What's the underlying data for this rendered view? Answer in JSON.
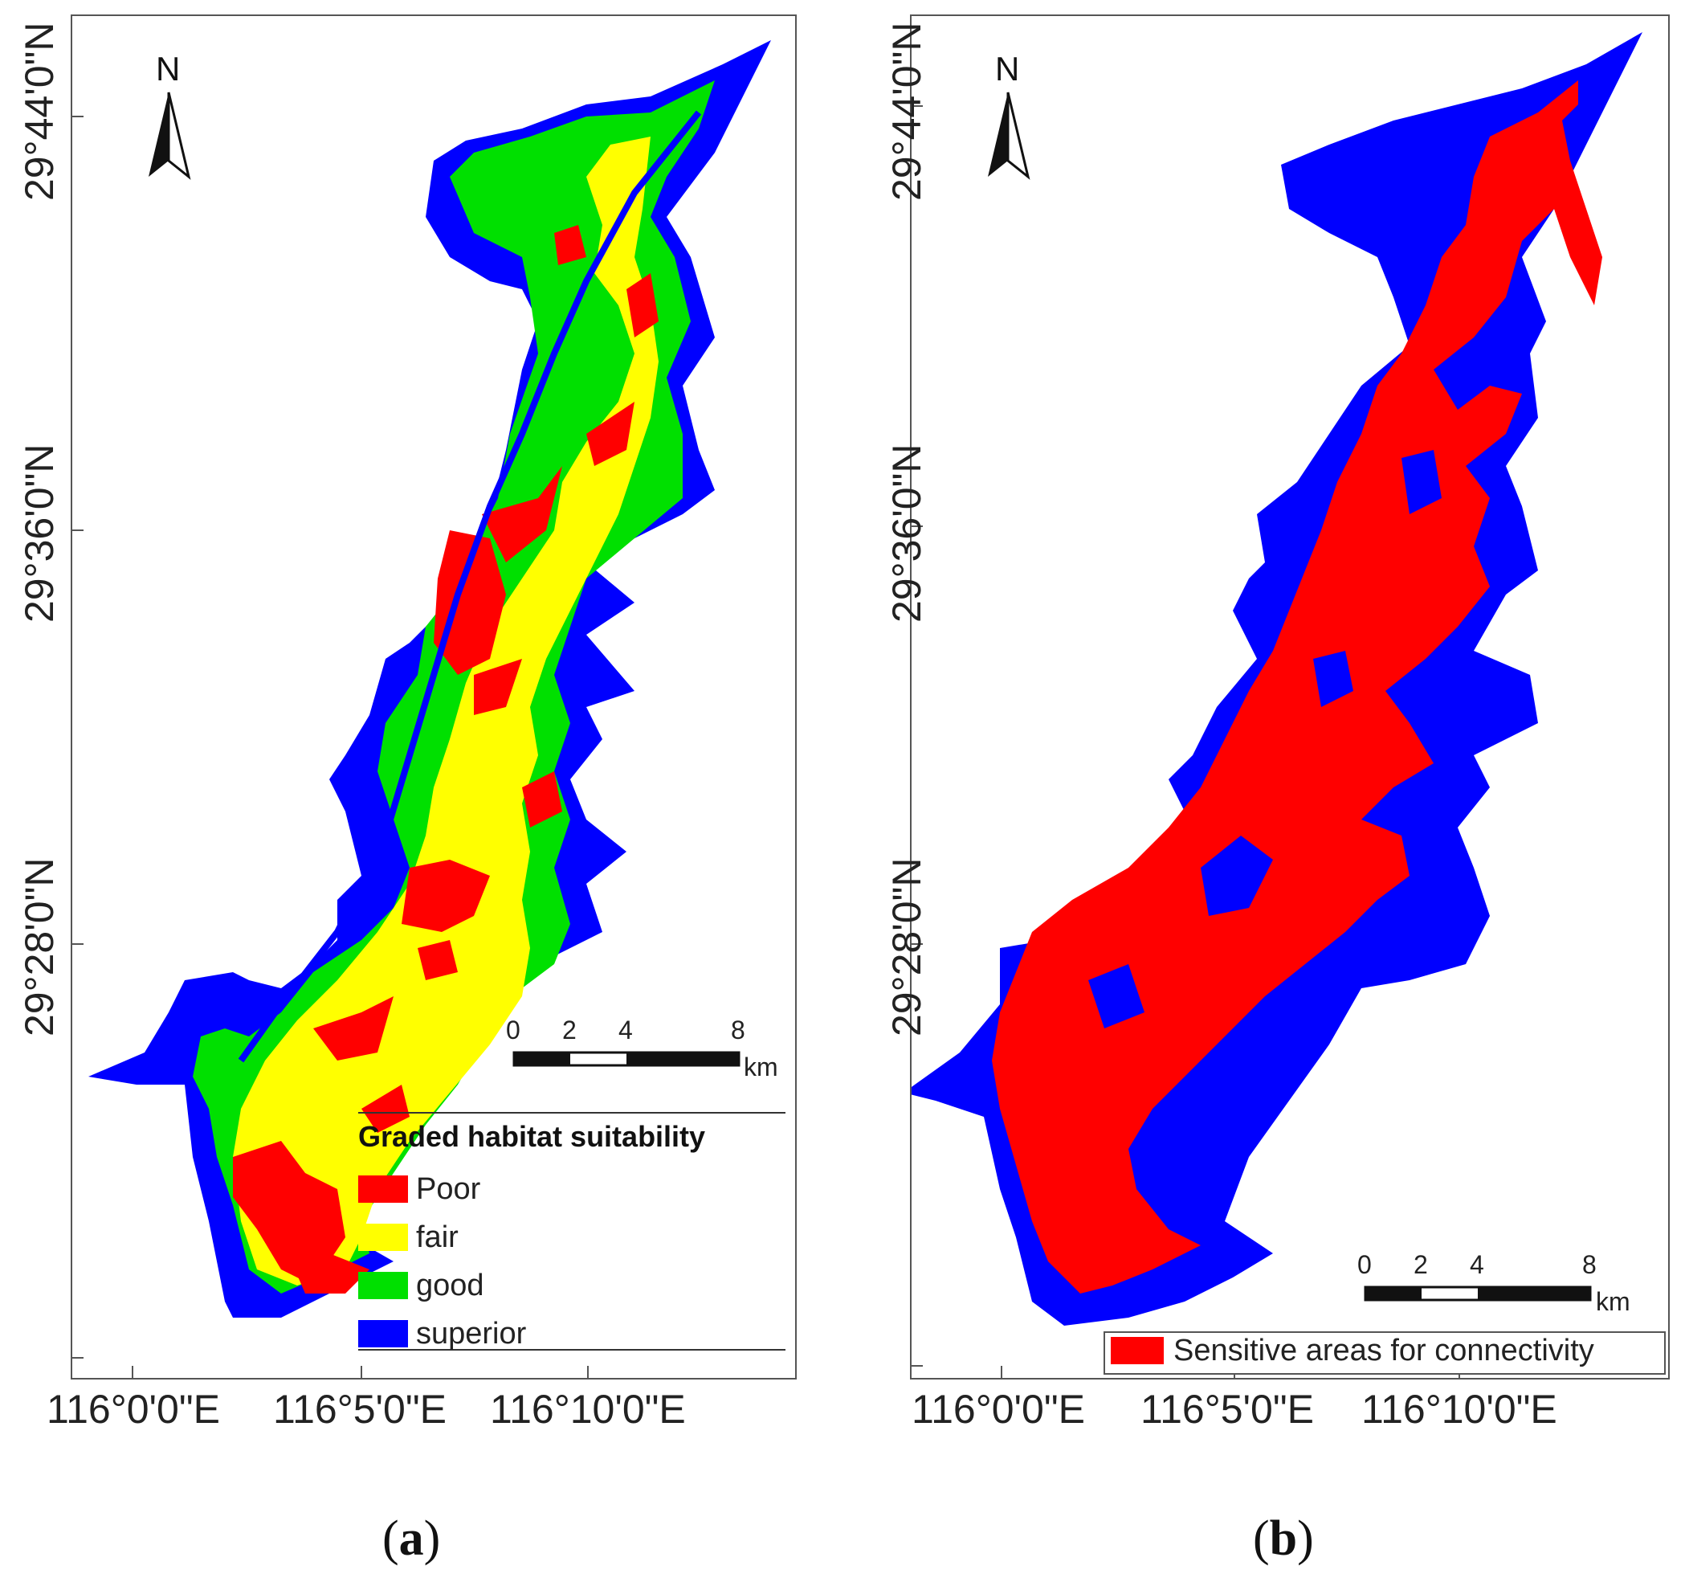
{
  "panel_a": {
    "caption_letter": "a",
    "lat_labels": [
      "29°44'0\"N",
      "29°36'0\"N",
      "29°28'0\"N"
    ],
    "lon_labels": [
      "116°0'0\"E",
      "116°5'0\"E",
      "116°10'0\"E"
    ],
    "north": "N",
    "scalebar": {
      "ticks": [
        "0",
        "2",
        "4",
        "8"
      ],
      "unit": "km"
    },
    "legend": {
      "title": "Graded habitat suitability",
      "items": [
        {
          "label": "Poor",
          "color": "#ff0000"
        },
        {
          "label": "fair",
          "color": "#ffff00"
        },
        {
          "label": "good",
          "color": "#00e000"
        },
        {
          "label": "superior",
          "color": "#0000ff"
        }
      ]
    }
  },
  "panel_b": {
    "caption_letter": "b",
    "lat_labels": [
      "29°44'0\"N",
      "29°36'0\"N",
      "29°28'0\"N"
    ],
    "lon_labels": [
      "116°0'0\"E",
      "116°5'0\"E",
      "116°10'0\"E"
    ],
    "north": "N",
    "scalebar": {
      "ticks": [
        "0",
        "2",
        "4",
        "8"
      ],
      "unit": "km"
    },
    "legend": {
      "items": [
        {
          "label": "Sensitive areas for connectivity",
          "color": "#ff0000"
        }
      ]
    }
  },
  "colors": {
    "red": "#ff0000",
    "yellow": "#ffff00",
    "green": "#00e000",
    "blue": "#0000ff"
  }
}
